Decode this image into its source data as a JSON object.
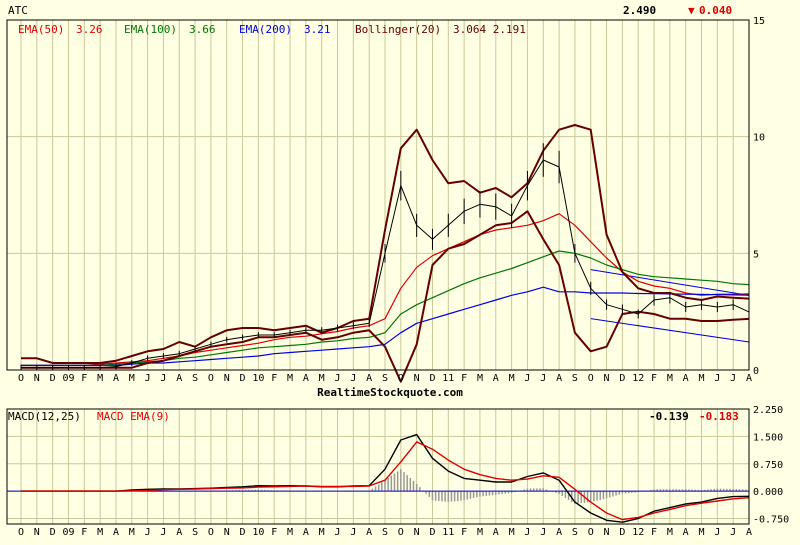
{
  "colors": {
    "background": "#FFFFE4",
    "grid": "#C8C898",
    "price": "#000000",
    "ema50": "#DD0000",
    "ema100": "#007700",
    "ema200": "#0000DD",
    "bollinger": "#660000",
    "macd": "#000000",
    "macd_ema": "#DD0000",
    "histogram": "#999999",
    "down": "#DD0000"
  },
  "header": {
    "symbol": "ATC",
    "last_price": "2.490",
    "change": "0.040",
    "change_arrow": "▼"
  },
  "watermark": "RealtimeStockquote.com",
  "legend": {
    "ema50": {
      "label": "EMA(50)",
      "value": "3.26"
    },
    "ema100": {
      "label": "EMA(100)",
      "value": "3.66"
    },
    "ema200": {
      "label": "EMA(200)",
      "value": "3.21"
    },
    "bollinger": {
      "label": "Bollinger(20)",
      "value": "3.064 2.191"
    }
  },
  "macd_legend": {
    "macd": {
      "label": "MACD(12,25)",
      "value": "-0.139"
    },
    "ema": {
      "label": "MACD EMA(9)",
      "value": "-0.183"
    }
  },
  "months": [
    "O",
    "N",
    "D",
    "09",
    "F",
    "M",
    "A",
    "M",
    "J",
    "J",
    "A",
    "S",
    "O",
    "N",
    "D",
    "10",
    "F",
    "M",
    "A",
    "M",
    "J",
    "J",
    "A",
    "S",
    "O",
    "N",
    "D",
    "11",
    "F",
    "M",
    "A",
    "M",
    "J",
    "J",
    "A",
    "S",
    "O",
    "N",
    "D",
    "12",
    "F",
    "M",
    "A",
    "M",
    "J",
    "J",
    "A"
  ],
  "chart_data": [
    {
      "type": "line",
      "name": "price",
      "ylim": [
        0,
        15
      ],
      "yticks": [
        "0",
        "5",
        "10",
        "15"
      ],
      "x": [
        0,
        1,
        2,
        3,
        4,
        5,
        6,
        7,
        8,
        9,
        10,
        11,
        12,
        13,
        14,
        15,
        16,
        17,
        18,
        19,
        20,
        21,
        22,
        23,
        24,
        25,
        26,
        27,
        28,
        29,
        30,
        31,
        32,
        33,
        34,
        35,
        36,
        37,
        38,
        39,
        40,
        41,
        42,
        43,
        44,
        45,
        46
      ],
      "series": [
        {
          "name": "EMA(50)",
          "values": [
            0.2,
            0.2,
            0.2,
            0.2,
            0.2,
            0.25,
            0.3,
            0.35,
            0.4,
            0.5,
            0.6,
            0.75,
            0.85,
            0.95,
            1.05,
            1.15,
            1.3,
            1.4,
            1.45,
            1.55,
            1.65,
            1.8,
            1.9,
            2.2,
            3.5,
            4.4,
            4.9,
            5.2,
            5.5,
            5.8,
            6.0,
            6.1,
            6.2,
            6.4,
            6.7,
            6.2,
            5.5,
            4.8,
            4.2,
            3.8,
            3.6,
            3.5,
            3.3,
            3.2,
            3.25,
            3.25,
            3.26
          ]
        },
        {
          "name": "EMA(100)",
          "values": [
            0.2,
            0.2,
            0.2,
            0.2,
            0.2,
            0.2,
            0.25,
            0.3,
            0.35,
            0.4,
            0.5,
            0.55,
            0.65,
            0.75,
            0.85,
            0.95,
            1.0,
            1.05,
            1.1,
            1.2,
            1.25,
            1.35,
            1.4,
            1.6,
            2.4,
            2.8,
            3.1,
            3.4,
            3.7,
            3.95,
            4.15,
            4.35,
            4.6,
            4.85,
            5.1,
            5.0,
            4.8,
            4.5,
            4.3,
            4.1,
            4.0,
            3.95,
            3.9,
            3.85,
            3.8,
            3.7,
            3.66
          ]
        },
        {
          "name": "EMA(200)",
          "values": [
            0.2,
            0.2,
            0.2,
            0.2,
            0.2,
            0.2,
            0.2,
            0.25,
            0.3,
            0.3,
            0.35,
            0.4,
            0.45,
            0.5,
            0.55,
            0.6,
            0.7,
            0.75,
            0.8,
            0.85,
            0.9,
            0.95,
            1.0,
            1.1,
            1.6,
            2.0,
            2.2,
            2.4,
            2.6,
            2.8,
            3.0,
            3.2,
            3.35,
            3.55,
            3.35,
            3.35,
            3.3,
            3.3,
            3.3,
            3.28,
            3.27,
            3.26,
            3.25,
            3.24,
            3.23,
            3.22,
            3.21
          ]
        },
        {
          "name": "Bollinger upper",
          "values": [
            0.5,
            0.5,
            0.3,
            0.3,
            0.3,
            0.3,
            0.4,
            0.6,
            0.8,
            0.9,
            1.2,
            1.0,
            1.4,
            1.7,
            1.8,
            1.8,
            1.7,
            1.8,
            1.9,
            1.6,
            1.8,
            2.1,
            2.2,
            6.0,
            9.5,
            10.3,
            9.0,
            8.0,
            8.1,
            7.6,
            7.8,
            7.4,
            8.0,
            9.4,
            10.3,
            10.5,
            10.3,
            5.8,
            4.2,
            3.5,
            3.3,
            3.3,
            3.1,
            3.0,
            3.15,
            3.1,
            3.06
          ]
        },
        {
          "name": "Bollinger lower",
          "values": [
            0.1,
            0.1,
            0.1,
            0.1,
            0.1,
            0.1,
            0.1,
            0.1,
            0.3,
            0.4,
            0.6,
            0.8,
            1.0,
            1.1,
            1.2,
            1.4,
            1.4,
            1.5,
            1.6,
            1.3,
            1.4,
            1.6,
            1.7,
            1.0,
            -0.5,
            1.1,
            4.5,
            5.2,
            5.4,
            5.8,
            6.2,
            6.3,
            6.8,
            5.6,
            4.5,
            1.6,
            0.8,
            1.0,
            2.4,
            2.5,
            2.4,
            2.2,
            2.2,
            2.1,
            2.1,
            2.15,
            2.19
          ]
        },
        {
          "name": "Price",
          "values": [
            0.1,
            0.1,
            0.1,
            0.1,
            0.1,
            0.1,
            0.15,
            0.3,
            0.5,
            0.6,
            0.7,
            0.9,
            1.1,
            1.3,
            1.4,
            1.5,
            1.5,
            1.6,
            1.7,
            1.7,
            1.8,
            1.9,
            2.0,
            5.0,
            7.9,
            6.2,
            5.6,
            6.2,
            6.8,
            7.1,
            7.0,
            6.6,
            7.9,
            9.0,
            8.7,
            5.0,
            3.5,
            2.8,
            2.6,
            2.4,
            3.0,
            3.1,
            2.7,
            2.8,
            2.7,
            2.8,
            2.49
          ]
        }
      ],
      "trendlines": [
        {
          "x": [
            36,
            46
          ],
          "values": [
            4.3,
            3.2
          ]
        },
        {
          "x": [
            36,
            46
          ],
          "values": [
            2.2,
            1.2
          ]
        }
      ]
    },
    {
      "type": "line",
      "name": "macd",
      "ylim": [
        -0.9,
        2.25
      ],
      "yticks": [
        "2.250",
        "1.500",
        "0.750",
        "0.000",
        "-0.750",
        "-1.500"
      ],
      "x": [
        0,
        1,
        2,
        3,
        4,
        5,
        6,
        7,
        8,
        9,
        10,
        11,
        12,
        13,
        14,
        15,
        16,
        17,
        18,
        19,
        20,
        21,
        22,
        23,
        24,
        25,
        26,
        27,
        28,
        29,
        30,
        31,
        32,
        33,
        34,
        35,
        36,
        37,
        38,
        39,
        40,
        41,
        42,
        43,
        44,
        45,
        46
      ],
      "series": [
        {
          "name": "MACD(12,25)",
          "values": [
            0,
            0,
            0,
            0,
            0,
            0,
            0,
            0.03,
            0.05,
            0.06,
            0.06,
            0.07,
            0.08,
            0.1,
            0.12,
            0.15,
            0.14,
            0.15,
            0.14,
            0.12,
            0.12,
            0.14,
            0.15,
            0.6,
            1.4,
            1.55,
            0.9,
            0.55,
            0.35,
            0.3,
            0.25,
            0.25,
            0.4,
            0.5,
            0.3,
            -0.3,
            -0.6,
            -0.8,
            -0.85,
            -0.75,
            -0.55,
            -0.45,
            -0.35,
            -0.3,
            -0.2,
            -0.15,
            -0.14
          ]
        },
        {
          "name": "MACD EMA(9)",
          "values": [
            0,
            0,
            0,
            0,
            0,
            0,
            0,
            0.01,
            0.02,
            0.04,
            0.05,
            0.06,
            0.07,
            0.08,
            0.09,
            0.11,
            0.12,
            0.13,
            0.14,
            0.13,
            0.13,
            0.13,
            0.14,
            0.3,
            0.8,
            1.35,
            1.15,
            0.85,
            0.6,
            0.45,
            0.35,
            0.3,
            0.33,
            0.42,
            0.38,
            0.05,
            -0.3,
            -0.6,
            -0.78,
            -0.72,
            -0.6,
            -0.5,
            -0.4,
            -0.33,
            -0.27,
            -0.21,
            -0.18
          ]
        }
      ]
    }
  ]
}
